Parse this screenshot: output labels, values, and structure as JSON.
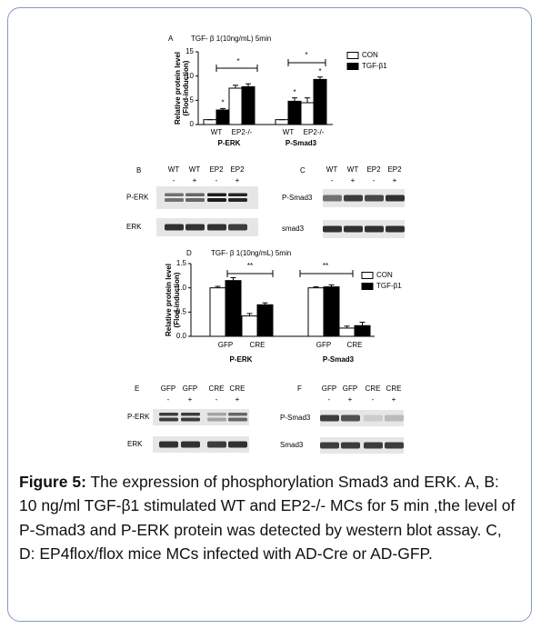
{
  "chart_data": [
    {
      "type": "bar",
      "panel": "A",
      "title": "TGF- β 1(10ng/mL) 5min",
      "ylabel": [
        "Relative protein level",
        "(Flod-induction)"
      ],
      "categories": [
        "WT",
        "EP2-/-",
        "WT",
        "EP2-/-"
      ],
      "groups": [
        "P-ERK",
        "P-Smad3"
      ],
      "series": [
        {
          "name": "CON",
          "color": "#ffffff",
          "values": [
            1,
            7.5,
            1,
            4.5
          ],
          "errors": [
            0,
            0.6,
            0,
            1.0
          ]
        },
        {
          "name": "TGF-β1",
          "color": "#000000",
          "values": [
            3,
            7.8,
            4.8,
            9.3
          ],
          "errors": [
            0.3,
            0.6,
            0.7,
            0.5
          ]
        }
      ],
      "ylim": [
        0,
        15
      ],
      "yticks": [
        0,
        5,
        10,
        15
      ],
      "annotations": [
        "*",
        "*",
        "*",
        "*",
        "*"
      ],
      "legend": "upper right"
    },
    {
      "type": "bar",
      "panel": "D",
      "title": "TGF- β 1(10ng/mL) 5min",
      "ylabel": [
        "Relative protein level",
        "(Flod-induction)"
      ],
      "categories": [
        "GFP",
        "CRE",
        "GFP",
        "CRE"
      ],
      "groups": [
        "P-ERK",
        "P-Smad3"
      ],
      "series": [
        {
          "name": "CON",
          "color": "#ffffff",
          "values": [
            1.0,
            0.42,
            1.0,
            0.17
          ],
          "errors": [
            0.03,
            0.05,
            0.02,
            0.04
          ]
        },
        {
          "name": "TGF-β1",
          "color": "#000000",
          "values": [
            1.15,
            0.65,
            1.02,
            0.22
          ],
          "errors": [
            0.06,
            0.04,
            0.04,
            0.07
          ]
        }
      ],
      "ylim": [
        0,
        1.5
      ],
      "yticks": [
        {
          "value": 0,
          "label": "0.0"
        },
        {
          "value": 0.5,
          "label": "0.5"
        },
        {
          "value": 1.0,
          "label": "1.0"
        },
        {
          "value": 1.5,
          "label": "1.5"
        }
      ],
      "annotations": [
        "**",
        "**"
      ],
      "legend": "upper right"
    }
  ],
  "blots": [
    {
      "panel": "B",
      "lanes": [
        "WT",
        "WT",
        "EP2",
        "EP2"
      ],
      "treatment": [
        "-",
        "+",
        "-",
        "+"
      ],
      "rows": [
        "P-ERK",
        "ERK"
      ]
    },
    {
      "panel": "C",
      "lanes": [
        "WT",
        "WT",
        "EP2",
        "EP2"
      ],
      "treatment": [
        "-",
        "+",
        "-",
        "+"
      ],
      "rows": [
        "P-Smad3",
        "smad3"
      ]
    },
    {
      "panel": "E",
      "lanes": [
        "GFP",
        "GFP",
        "CRE",
        "CRE"
      ],
      "treatment": [
        "-",
        "+",
        "-",
        "+"
      ],
      "rows": [
        "P-ERK",
        "ERK"
      ]
    },
    {
      "panel": "F",
      "lanes": [
        "GFP",
        "GFP",
        "CRE",
        "CRE"
      ],
      "treatment": [
        "-",
        "+",
        "-",
        "+"
      ],
      "rows": [
        "P-Smad3",
        "Smad3"
      ]
    }
  ],
  "caption": {
    "label": "Figure 5:",
    "text": "The expression of phosphorylation Smad3 and ERK. A, B: 10 ng/ml TGF-β1 stimulated WT and EP2-/- MCs for 5 min ,the level of P-Smad3 and P-ERK protein was detected by western blot assay. C, D: EP4flox/flox mice MCs infected with AD-Cre or AD-GFP."
  }
}
